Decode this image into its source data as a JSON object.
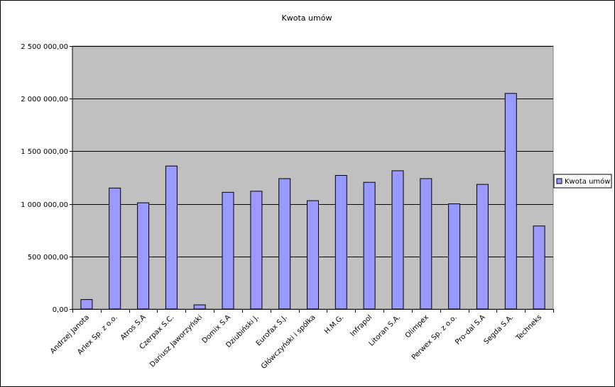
{
  "chart_data": {
    "type": "bar",
    "title": "Kwota umów",
    "xlabel": "",
    "ylabel": "",
    "ylim": [
      0,
      2500000
    ],
    "yticks": [
      0,
      500000,
      1000000,
      1500000,
      2000000,
      2500000
    ],
    "ytick_labels": [
      "0,00",
      "500 000,00",
      "1 000 000,00",
      "1 500 000,00",
      "2 000 000,00",
      "2 500 000,00"
    ],
    "grid": true,
    "legend_position": "right",
    "categories": [
      "Andrzej Janota",
      "Arlex Sp. z o.o.",
      "Atros S.A",
      "Czerpax S.C.",
      "Dariusz Jaworzyński",
      "Domix S.A",
      "Dziubiński J.",
      "Eurofax S.J.",
      "Główczyński i spółka",
      "H.M.G.",
      "Infrapol",
      "Litoran S.A.",
      "Olimpex",
      "Perwex Sp. z o.o.",
      "Pro-dal S.A",
      "Segda S.A.",
      "Techneks"
    ],
    "series": [
      {
        "name": "Kwota umów",
        "color": "#9999ff",
        "values": [
          90000,
          1150000,
          1010000,
          1360000,
          40000,
          1110000,
          1120000,
          1240000,
          1030000,
          1270000,
          1205000,
          1315000,
          1240000,
          1000000,
          1185000,
          2050000,
          790000
        ]
      }
    ]
  },
  "colors": {
    "plot_background": "#c0c0c0",
    "bar_fill": "#9999ff",
    "bar_stroke": "#000000",
    "gridline": "#000000"
  }
}
